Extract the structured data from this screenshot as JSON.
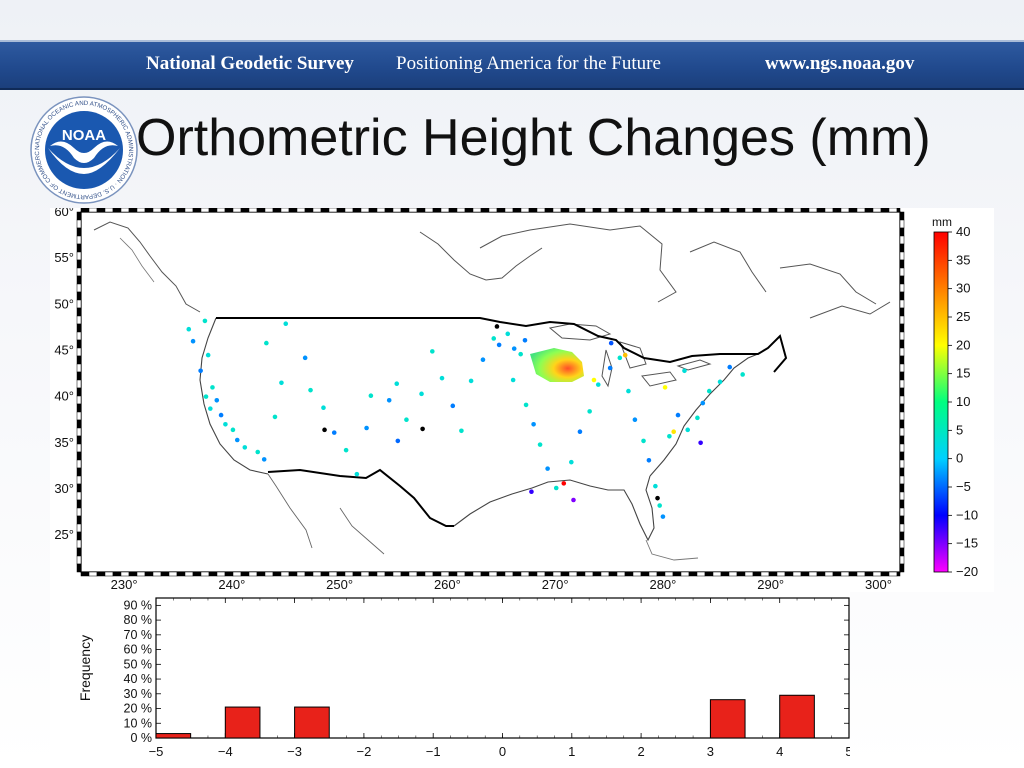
{
  "banner": {
    "organization": "National Geodetic Survey",
    "tagline": "Positioning America for the Future",
    "url": "www.ngs.noaa.gov"
  },
  "logo": {
    "text": "NOAA",
    "ring_text": "NATIONAL OCEANIC AND ATMOSPHERIC ADMINISTRATION · U.S. DEPARTMENT OF COMMERCE"
  },
  "slide": {
    "title": "Orthometric Height Changes (mm)"
  },
  "colors": {
    "banner": "#214a8e",
    "bar": "#e8221a",
    "map_border": "#000000"
  },
  "chart_data": [
    {
      "type": "scatter",
      "description_kind": "map",
      "x_ticks": [
        "230°",
        "240°",
        "250°",
        "260°",
        "270°",
        "280°",
        "290°",
        "300°"
      ],
      "y_ticks": [
        "60°",
        "55°",
        "50°",
        "45°",
        "40°",
        "35°",
        "30°",
        "25°"
      ],
      "xlim": [
        226,
        302
      ],
      "ylim": [
        21,
        60
      ],
      "colorbar": {
        "label": "mm",
        "ticks": [
          "40",
          "35",
          "30",
          "25",
          "20",
          "15",
          "10",
          "5",
          "0",
          "−5",
          "−10",
          "−15",
          "−20"
        ],
        "range": [
          -20,
          40
        ],
        "colors": [
          "#ff00ff",
          "#0000ff",
          "#00d0ff",
          "#00ff80",
          "#ffff00",
          "#ff8000",
          "#ff0000"
        ]
      },
      "points": [
        {
          "x": 236.0,
          "y": 47.3,
          "v": 3
        },
        {
          "x": 236.4,
          "y": 46.0,
          "v": -3
        },
        {
          "x": 237.5,
          "y": 48.2,
          "v": 4
        },
        {
          "x": 237.8,
          "y": 44.5,
          "v": 3
        },
        {
          "x": 237.1,
          "y": 42.8,
          "v": -4
        },
        {
          "x": 238.2,
          "y": 41.0,
          "v": 4
        },
        {
          "x": 238.6,
          "y": 39.6,
          "v": -3
        },
        {
          "x": 238.0,
          "y": 38.7,
          "v": 3
        },
        {
          "x": 237.6,
          "y": 40.0,
          "v": 4
        },
        {
          "x": 239.0,
          "y": 38.0,
          "v": -4
        },
        {
          "x": 239.4,
          "y": 37.0,
          "v": 3
        },
        {
          "x": 240.1,
          "y": 36.4,
          "v": 4
        },
        {
          "x": 240.5,
          "y": 35.3,
          "v": -3
        },
        {
          "x": 241.2,
          "y": 34.5,
          "v": 3
        },
        {
          "x": 242.4,
          "y": 34.0,
          "v": 4
        },
        {
          "x": 243.0,
          "y": 33.2,
          "v": -3
        },
        {
          "x": 244.0,
          "y": 37.8,
          "v": 4
        },
        {
          "x": 244.6,
          "y": 41.5,
          "v": 3
        },
        {
          "x": 243.2,
          "y": 45.8,
          "v": 4
        },
        {
          "x": 245.0,
          "y": 47.9,
          "v": 3
        },
        {
          "x": 246.8,
          "y": 44.2,
          "v": -3
        },
        {
          "x": 247.3,
          "y": 40.7,
          "v": 4
        },
        {
          "x": 248.5,
          "y": 38.8,
          "v": 3
        },
        {
          "x": 249.5,
          "y": 36.1,
          "v": -4
        },
        {
          "x": 250.6,
          "y": 34.2,
          "v": 4
        },
        {
          "x": 251.6,
          "y": 31.6,
          "v": 3
        },
        {
          "x": 252.5,
          "y": 36.6,
          "v": -3
        },
        {
          "x": 252.9,
          "y": 40.1,
          "v": 4
        },
        {
          "x": 254.6,
          "y": 39.6,
          "v": -3
        },
        {
          "x": 255.3,
          "y": 41.4,
          "v": 3
        },
        {
          "x": 256.2,
          "y": 37.5,
          "v": 4
        },
        {
          "x": 255.4,
          "y": 35.2,
          "v": -5
        },
        {
          "x": 257.6,
          "y": 40.3,
          "v": 3
        },
        {
          "x": 258.6,
          "y": 44.9,
          "v": 4
        },
        {
          "x": 259.5,
          "y": 42.0,
          "v": 3
        },
        {
          "x": 260.5,
          "y": 39.0,
          "v": -4
        },
        {
          "x": 261.3,
          "y": 36.3,
          "v": 4
        },
        {
          "x": 262.2,
          "y": 41.7,
          "v": 3
        },
        {
          "x": 263.3,
          "y": 44.0,
          "v": -3
        },
        {
          "x": 264.3,
          "y": 46.3,
          "v": 4
        },
        {
          "x": 264.8,
          "y": 45.6,
          "v": -4
        },
        {
          "x": 265.6,
          "y": 46.8,
          "v": 3
        },
        {
          "x": 266.2,
          "y": 45.2,
          "v": -3
        },
        {
          "x": 266.8,
          "y": 44.6,
          "v": 4
        },
        {
          "x": 267.2,
          "y": 46.1,
          "v": -4
        },
        {
          "x": 266.1,
          "y": 41.8,
          "v": 3
        },
        {
          "x": 267.3,
          "y": 39.1,
          "v": 4
        },
        {
          "x": 268.0,
          "y": 37.0,
          "v": -3
        },
        {
          "x": 268.6,
          "y": 34.8,
          "v": 4
        },
        {
          "x": 269.3,
          "y": 32.2,
          "v": -3
        },
        {
          "x": 270.1,
          "y": 30.1,
          "v": 4
        },
        {
          "x": 270.8,
          "y": 30.6,
          "v": 40
        },
        {
          "x": 271.5,
          "y": 32.9,
          "v": 3
        },
        {
          "x": 272.3,
          "y": 36.2,
          "v": -4
        },
        {
          "x": 273.2,
          "y": 38.4,
          "v": 4
        },
        {
          "x": 274.0,
          "y": 41.3,
          "v": 3
        },
        {
          "x": 275.1,
          "y": 43.1,
          "v": -4
        },
        {
          "x": 276.0,
          "y": 44.2,
          "v": 4
        },
        {
          "x": 276.8,
          "y": 40.6,
          "v": 3
        },
        {
          "x": 277.4,
          "y": 37.5,
          "v": -3
        },
        {
          "x": 278.2,
          "y": 35.2,
          "v": 4
        },
        {
          "x": 278.7,
          "y": 33.1,
          "v": -4
        },
        {
          "x": 279.3,
          "y": 30.3,
          "v": 3
        },
        {
          "x": 279.7,
          "y": 28.2,
          "v": 4
        },
        {
          "x": 280.0,
          "y": 27.0,
          "v": -3
        },
        {
          "x": 280.6,
          "y": 35.7,
          "v": 4
        },
        {
          "x": 281.4,
          "y": 38.0,
          "v": -4
        },
        {
          "x": 282.3,
          "y": 36.4,
          "v": 3
        },
        {
          "x": 283.2,
          "y": 37.7,
          "v": 4
        },
        {
          "x": 283.7,
          "y": 39.3,
          "v": -3
        },
        {
          "x": 284.3,
          "y": 40.6,
          "v": 4
        },
        {
          "x": 285.3,
          "y": 41.6,
          "v": 3
        },
        {
          "x": 286.2,
          "y": 43.2,
          "v": -4
        },
        {
          "x": 287.4,
          "y": 42.4,
          "v": 4
        },
        {
          "x": 282.0,
          "y": 42.8,
          "v": 3
        },
        {
          "x": 280.2,
          "y": 41.0,
          "v": 20
        },
        {
          "x": 281.0,
          "y": 36.2,
          "v": 22
        },
        {
          "x": 276.5,
          "y": 44.5,
          "v": 25
        },
        {
          "x": 275.2,
          "y": 45.8,
          "v": -6
        },
        {
          "x": 273.6,
          "y": 41.8,
          "v": 20
        },
        {
          "x": 271.7,
          "y": 28.8,
          "v": -15
        },
        {
          "x": 283.5,
          "y": 35.0,
          "v": -12
        },
        {
          "x": 267.8,
          "y": 29.7,
          "v": -12
        },
        {
          "x": 257.7,
          "y": 36.5,
          "v": -25
        },
        {
          "x": 248.6,
          "y": 36.4,
          "v": -25
        },
        {
          "x": 264.6,
          "y": 47.6,
          "v": -25
        },
        {
          "x": 279.5,
          "y": 29.0,
          "v": -25
        }
      ]
    },
    {
      "type": "bar",
      "ylabel": "Frequency",
      "x": [
        -4.75,
        -3.75,
        -2.75,
        3.25,
        4.25
      ],
      "values": [
        3,
        21,
        21,
        26,
        29
      ],
      "x_ticks": [
        "−5",
        "−4",
        "−3",
        "−2",
        "−1",
        "0",
        "1",
        "2",
        "3",
        "4",
        "5"
      ],
      "y_ticks": [
        "90 %",
        "80 %",
        "70 %",
        "60 %",
        "50 %",
        "40 %",
        "30 %",
        "20 %",
        "10 %",
        "0 %"
      ],
      "xlim": [
        -5,
        5
      ],
      "ylim": [
        0,
        95
      ]
    }
  ]
}
